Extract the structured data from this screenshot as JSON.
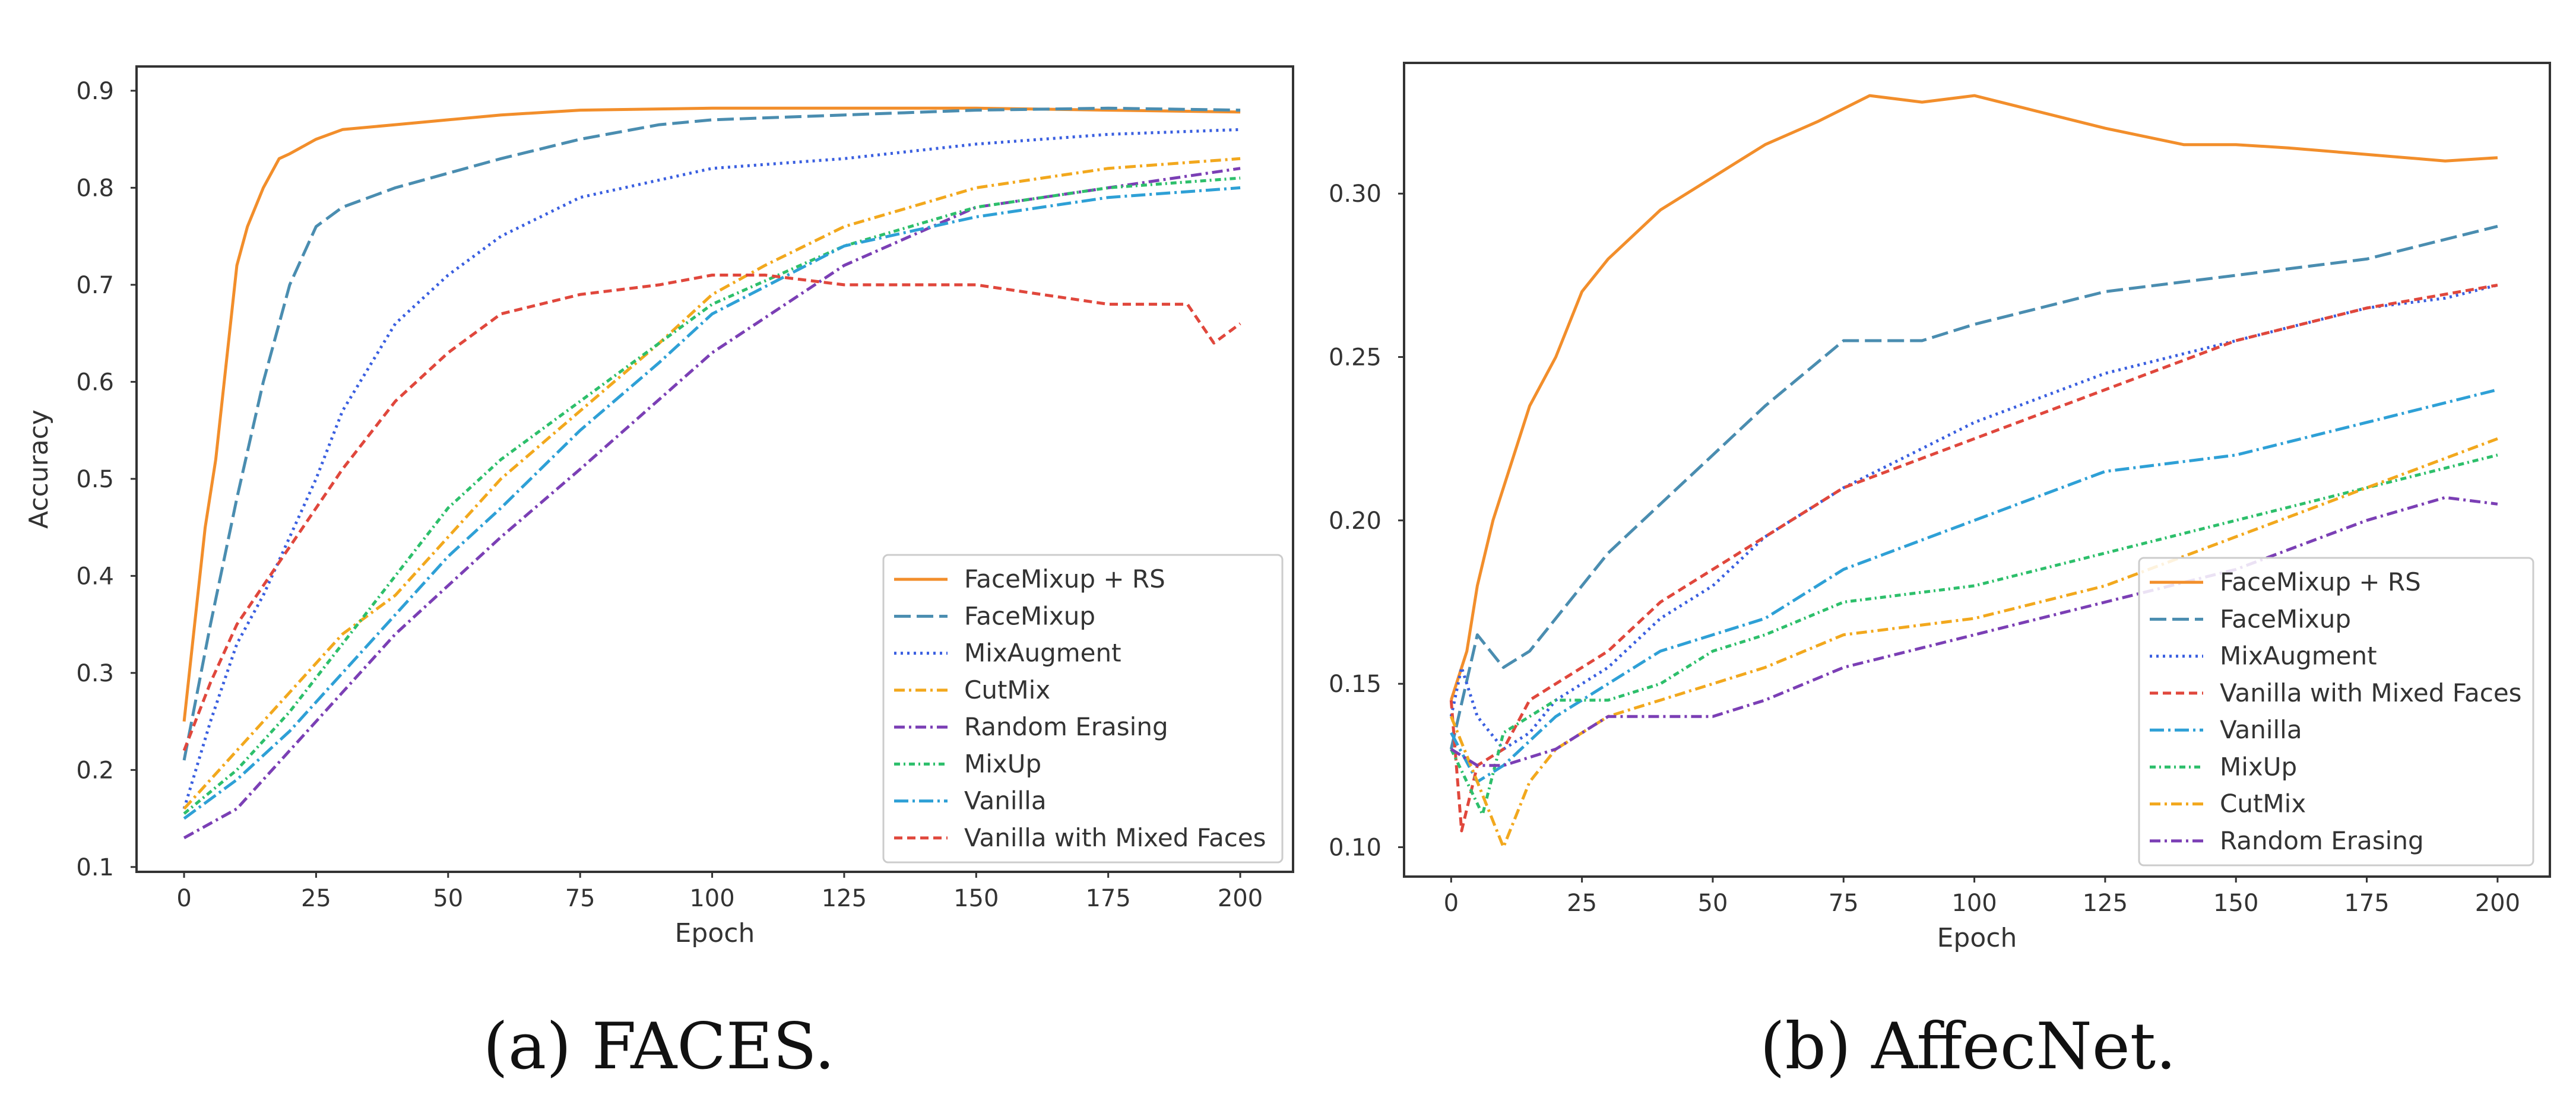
{
  "chart_data": [
    {
      "type": "line",
      "caption": "(a) FACES.",
      "xlabel": "Epoch",
      "ylabel": "Accuracy",
      "xlim": [
        -9,
        210
      ],
      "ylim": [
        0.095,
        0.925
      ],
      "xticks": [
        0,
        25,
        50,
        75,
        100,
        125,
        150,
        175,
        200
      ],
      "xtick_labels": [
        "0",
        "25",
        "50",
        "75",
        "100",
        "125",
        "150",
        "175",
        "200"
      ],
      "yticks": [
        0.1,
        0.2,
        0.3,
        0.4,
        0.5,
        0.6,
        0.7,
        0.8,
        0.9
      ],
      "ytick_labels": [
        "0.1",
        "0.2",
        "0.3",
        "0.4",
        "0.5",
        "0.6",
        "0.7",
        "0.8",
        "0.9"
      ],
      "grid": false,
      "legend_position": "lower right",
      "series": [
        {
          "name": "FaceMixup + RS",
          "color": "#f28e2b",
          "dash": "solid",
          "width": 5,
          "x": [
            0,
            2,
            4,
            6,
            8,
            10,
            12,
            15,
            18,
            20,
            25,
            30,
            40,
            50,
            60,
            75,
            100,
            125,
            150,
            175,
            200
          ],
          "y": [
            0.25,
            0.35,
            0.45,
            0.52,
            0.62,
            0.72,
            0.76,
            0.8,
            0.83,
            0.835,
            0.85,
            0.86,
            0.865,
            0.87,
            0.875,
            0.88,
            0.882,
            0.882,
            0.882,
            0.88,
            0.878
          ]
        },
        {
          "name": "FaceMixup",
          "color": "#4a8db0",
          "dash": "28 10",
          "width": 5,
          "x": [
            0,
            5,
            10,
            15,
            20,
            25,
            30,
            40,
            50,
            60,
            75,
            90,
            100,
            125,
            150,
            175,
            200
          ],
          "y": [
            0.21,
            0.35,
            0.48,
            0.6,
            0.7,
            0.76,
            0.78,
            0.8,
            0.815,
            0.83,
            0.85,
            0.865,
            0.87,
            0.875,
            0.88,
            0.882,
            0.88
          ]
        },
        {
          "name": "MixAugment",
          "color": "#3a5fe0",
          "dash": "4 7",
          "width": 5,
          "x": [
            0,
            5,
            10,
            15,
            20,
            25,
            30,
            40,
            50,
            60,
            75,
            100,
            125,
            150,
            175,
            200
          ],
          "y": [
            0.16,
            0.25,
            0.33,
            0.38,
            0.44,
            0.5,
            0.57,
            0.66,
            0.71,
            0.75,
            0.79,
            0.82,
            0.83,
            0.845,
            0.855,
            0.86
          ]
        },
        {
          "name": "CutMix",
          "color": "#f2a81d",
          "dash": "18 7 4 7",
          "width": 5,
          "x": [
            0,
            10,
            20,
            30,
            40,
            50,
            60,
            75,
            90,
            100,
            110,
            125,
            150,
            175,
            200
          ],
          "y": [
            0.16,
            0.22,
            0.28,
            0.34,
            0.38,
            0.44,
            0.5,
            0.57,
            0.64,
            0.69,
            0.72,
            0.76,
            0.8,
            0.82,
            0.83
          ]
        },
        {
          "name": "Random Erasing",
          "color": "#7b3fb5",
          "dash": "18 7 4 7",
          "width": 5,
          "x": [
            0,
            10,
            20,
            30,
            40,
            50,
            60,
            75,
            100,
            125,
            150,
            175,
            200
          ],
          "y": [
            0.13,
            0.16,
            0.22,
            0.28,
            0.34,
            0.39,
            0.44,
            0.51,
            0.63,
            0.72,
            0.78,
            0.8,
            0.82
          ]
        },
        {
          "name": "MixUp",
          "color": "#2dbf6b",
          "dash": "10 6 3 6",
          "width": 5,
          "x": [
            0,
            10,
            20,
            30,
            40,
            50,
            60,
            75,
            90,
            100,
            125,
            150,
            175,
            200
          ],
          "y": [
            0.155,
            0.2,
            0.26,
            0.33,
            0.4,
            0.47,
            0.52,
            0.58,
            0.64,
            0.68,
            0.74,
            0.78,
            0.8,
            0.81
          ]
        },
        {
          "name": "Vanilla",
          "color": "#2ea0d6",
          "dash": "24 7 4 7",
          "width": 5,
          "x": [
            0,
            10,
            20,
            30,
            40,
            50,
            60,
            75,
            90,
            100,
            125,
            150,
            175,
            200
          ],
          "y": [
            0.15,
            0.19,
            0.24,
            0.3,
            0.36,
            0.42,
            0.47,
            0.55,
            0.62,
            0.67,
            0.74,
            0.77,
            0.79,
            0.8
          ]
        },
        {
          "name": "Vanilla with Mixed Faces",
          "color": "#e0473c",
          "dash": "14 8",
          "width": 5,
          "x": [
            0,
            5,
            10,
            20,
            30,
            40,
            50,
            60,
            75,
            90,
            100,
            110,
            125,
            150,
            175,
            190,
            195,
            200
          ],
          "y": [
            0.22,
            0.29,
            0.35,
            0.43,
            0.51,
            0.58,
            0.63,
            0.67,
            0.69,
            0.7,
            0.71,
            0.71,
            0.7,
            0.7,
            0.68,
            0.68,
            0.64,
            0.66
          ]
        }
      ]
    },
    {
      "type": "line",
      "caption": "(b) AffecNet.",
      "xlabel": "Epoch",
      "ylabel": "",
      "xlim": [
        -9,
        210
      ],
      "ylim": [
        0.091,
        0.34
      ],
      "xticks": [
        0,
        25,
        50,
        75,
        100,
        125,
        150,
        175,
        200
      ],
      "xtick_labels": [
        "0",
        "25",
        "50",
        "75",
        "100",
        "125",
        "150",
        "175",
        "200"
      ],
      "yticks": [
        0.1,
        0.15,
        0.2,
        0.25,
        0.3
      ],
      "ytick_labels": [
        "0.10",
        "0.15",
        "0.20",
        "0.25",
        "0.30"
      ],
      "grid": false,
      "legend_position": "lower right",
      "series": [
        {
          "name": "FaceMixup + RS",
          "color": "#f28e2b",
          "dash": "solid",
          "width": 5,
          "x": [
            0,
            3,
            5,
            8,
            10,
            15,
            20,
            25,
            30,
            40,
            50,
            60,
            70,
            75,
            80,
            90,
            100,
            110,
            125,
            140,
            150,
            160,
            175,
            190,
            200
          ],
          "y": [
            0.145,
            0.16,
            0.18,
            0.2,
            0.21,
            0.235,
            0.25,
            0.27,
            0.28,
            0.295,
            0.305,
            0.315,
            0.322,
            0.326,
            0.33,
            0.328,
            0.33,
            0.326,
            0.32,
            0.315,
            0.315,
            0.314,
            0.312,
            0.31,
            0.311
          ]
        },
        {
          "name": "FaceMixup",
          "color": "#4a8db0",
          "dash": "28 10",
          "width": 5,
          "x": [
            0,
            5,
            10,
            15,
            20,
            30,
            40,
            50,
            60,
            75,
            80,
            90,
            100,
            125,
            150,
            175,
            200
          ],
          "y": [
            0.13,
            0.165,
            0.155,
            0.16,
            0.17,
            0.19,
            0.205,
            0.22,
            0.235,
            0.255,
            0.255,
            0.255,
            0.26,
            0.27,
            0.275,
            0.28,
            0.29
          ]
        },
        {
          "name": "MixAugment",
          "color": "#3a5fe0",
          "dash": "4 7",
          "width": 5,
          "x": [
            0,
            2,
            5,
            10,
            15,
            20,
            30,
            40,
            50,
            60,
            75,
            100,
            125,
            150,
            175,
            190,
            200
          ],
          "y": [
            0.14,
            0.155,
            0.14,
            0.13,
            0.135,
            0.145,
            0.155,
            0.17,
            0.18,
            0.195,
            0.21,
            0.23,
            0.245,
            0.255,
            0.265,
            0.268,
            0.272
          ]
        },
        {
          "name": "Vanilla with Mixed Faces",
          "color": "#e0473c",
          "dash": "14 8",
          "width": 5,
          "x": [
            0,
            2,
            5,
            10,
            15,
            20,
            30,
            40,
            50,
            60,
            75,
            100,
            125,
            150,
            175,
            200
          ],
          "y": [
            0.145,
            0.105,
            0.125,
            0.13,
            0.145,
            0.15,
            0.16,
            0.175,
            0.185,
            0.195,
            0.21,
            0.225,
            0.24,
            0.255,
            0.265,
            0.272
          ]
        },
        {
          "name": "Vanilla",
          "color": "#2ea0d6",
          "dash": "24 7 4 7",
          "width": 5,
          "x": [
            0,
            5,
            10,
            20,
            30,
            40,
            50,
            60,
            75,
            100,
            125,
            150,
            175,
            200
          ],
          "y": [
            0.135,
            0.12,
            0.125,
            0.14,
            0.15,
            0.16,
            0.165,
            0.17,
            0.185,
            0.2,
            0.215,
            0.22,
            0.23,
            0.24
          ]
        },
        {
          "name": "MixUp",
          "color": "#2dbf6b",
          "dash": "10 6 3 6",
          "width": 5,
          "x": [
            0,
            3,
            6,
            10,
            20,
            30,
            40,
            50,
            60,
            75,
            100,
            125,
            150,
            175,
            200
          ],
          "y": [
            0.13,
            0.12,
            0.11,
            0.135,
            0.145,
            0.145,
            0.15,
            0.16,
            0.165,
            0.175,
            0.18,
            0.19,
            0.2,
            0.21,
            0.22
          ]
        },
        {
          "name": "CutMix",
          "color": "#f2a81d",
          "dash": "18 7 4 7",
          "width": 5,
          "x": [
            0,
            5,
            10,
            15,
            20,
            30,
            40,
            50,
            60,
            75,
            100,
            125,
            150,
            175,
            200
          ],
          "y": [
            0.14,
            0.12,
            0.1,
            0.12,
            0.13,
            0.14,
            0.145,
            0.15,
            0.155,
            0.165,
            0.17,
            0.18,
            0.195,
            0.21,
            0.225
          ]
        },
        {
          "name": "Random Erasing",
          "color": "#7b3fb5",
          "dash": "18 7 4 7",
          "width": 5,
          "x": [
            0,
            5,
            10,
            20,
            30,
            40,
            50,
            60,
            75,
            100,
            125,
            150,
            175,
            190,
            200
          ],
          "y": [
            0.13,
            0.125,
            0.125,
            0.13,
            0.14,
            0.14,
            0.14,
            0.145,
            0.155,
            0.165,
            0.175,
            0.185,
            0.2,
            0.207,
            0.205
          ]
        }
      ]
    }
  ]
}
